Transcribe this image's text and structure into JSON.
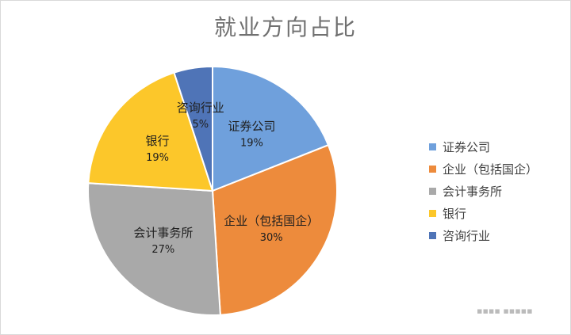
{
  "chart_data": {
    "type": "pie",
    "title": "就业方向占比",
    "slices": [
      {
        "label": "证券公司",
        "value": 19,
        "value_label": "19%",
        "color": "#6fa0dc"
      },
      {
        "label": "企业（包括国企）",
        "value": 30,
        "value_label": "30%",
        "color": "#ed8b3c"
      },
      {
        "label": "会计事务所",
        "value": 27,
        "value_label": "27%",
        "color": "#a9a9a9"
      },
      {
        "label": "银行",
        "value": 19,
        "value_label": "19%",
        "color": "#fcc72a"
      },
      {
        "label": "咨询行业",
        "value": 5,
        "value_label": "5%",
        "color": "#4f74b7"
      }
    ],
    "start_angle_deg": 0,
    "direction": "clockwise",
    "legend_position": "right",
    "data_labels": "inside"
  }
}
